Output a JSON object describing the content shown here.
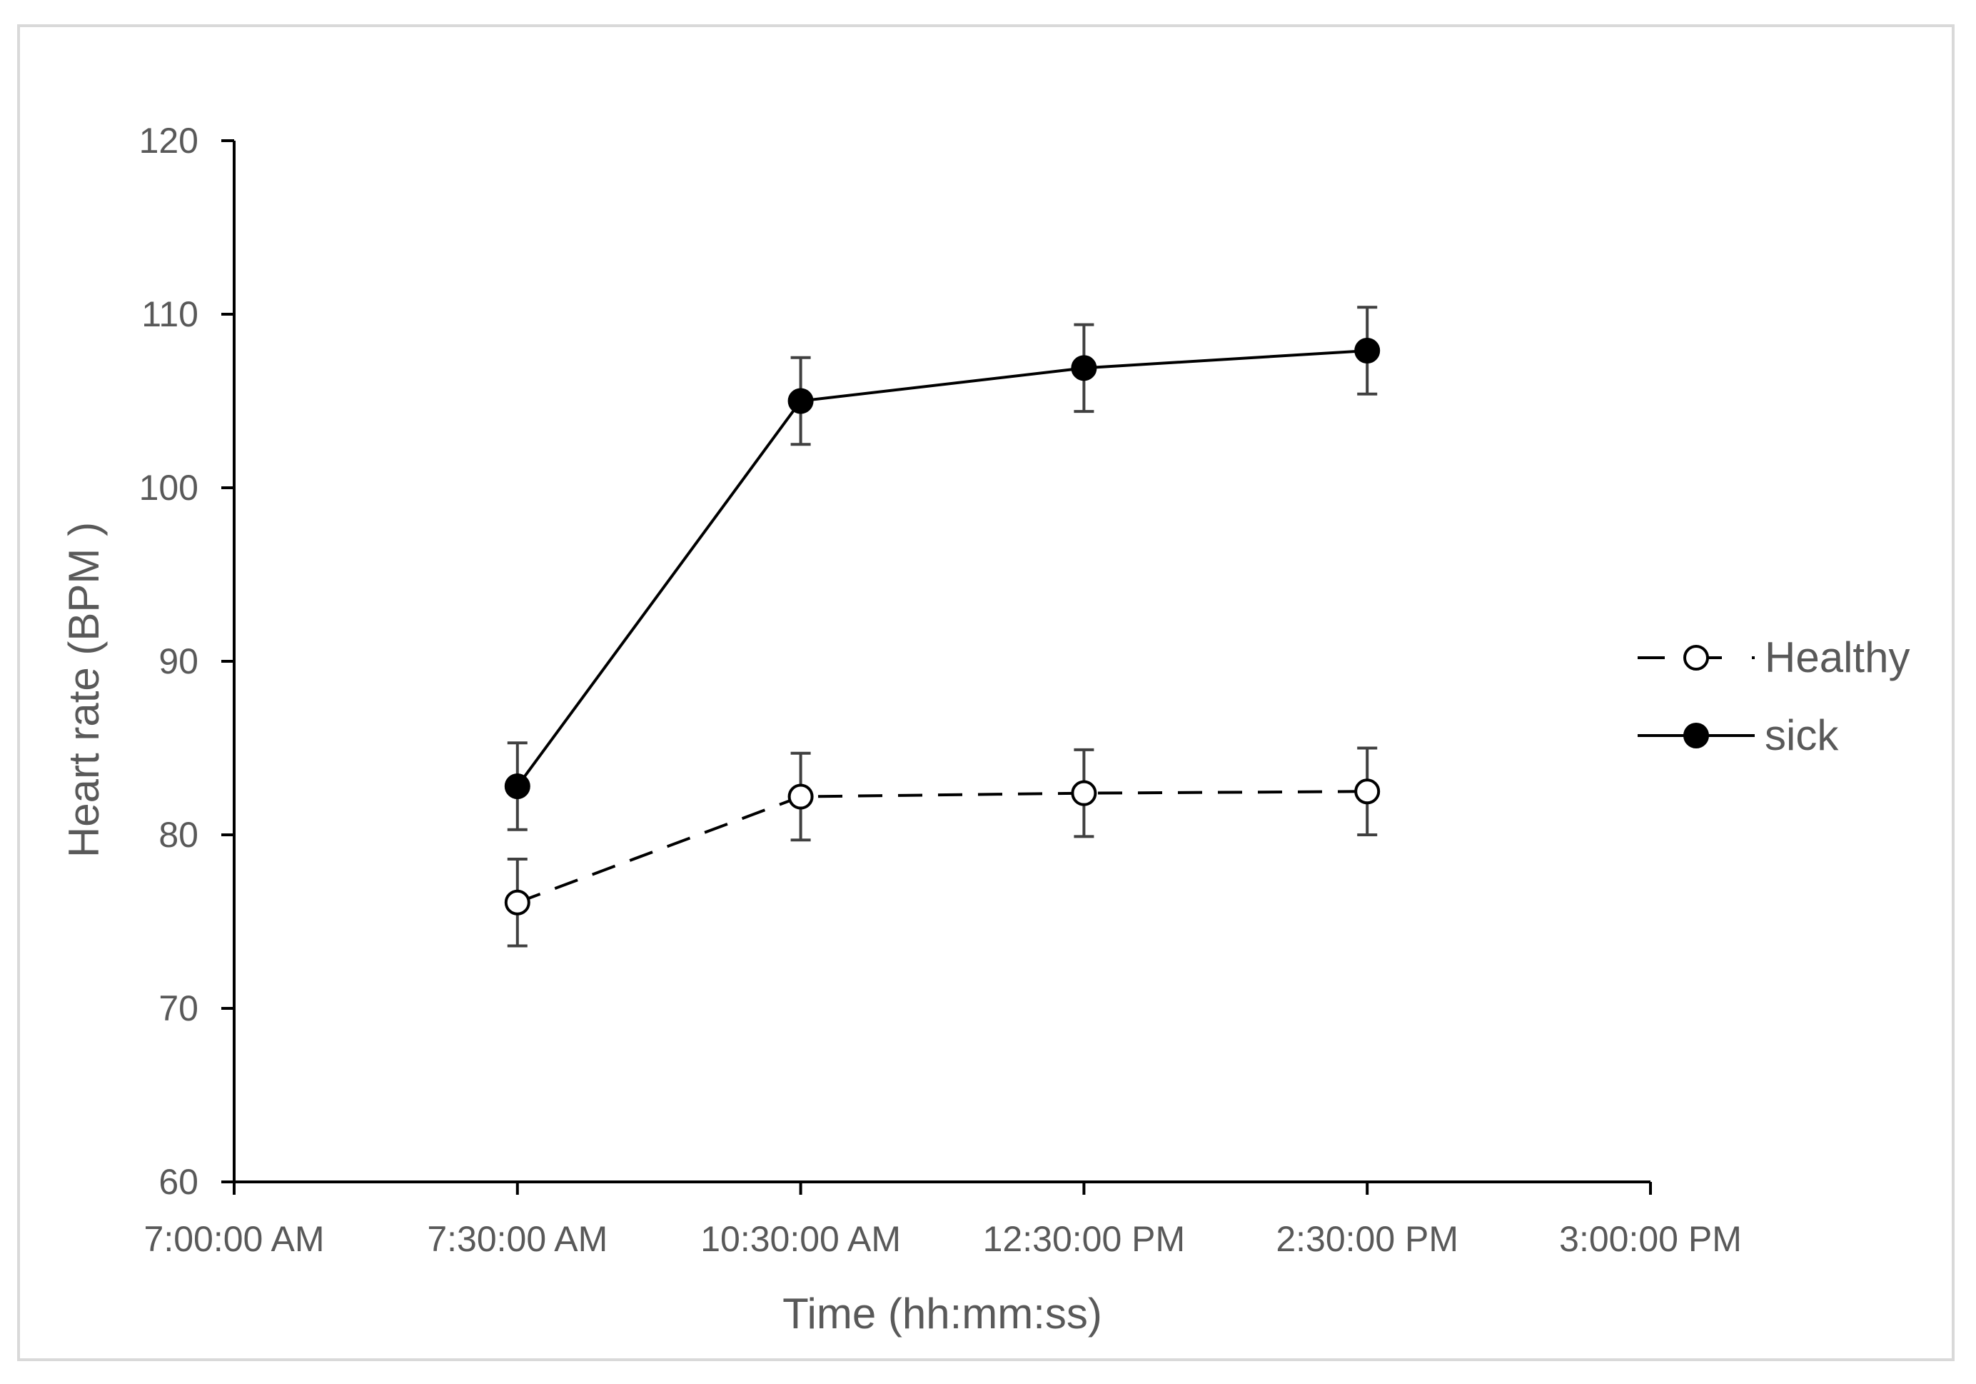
{
  "chart_data": {
    "type": "line",
    "title": "",
    "xlabel": "Time (hh:mm:ss)",
    "ylabel": "Heart rate (BPM )",
    "ylim": [
      60,
      120
    ],
    "yticks": [
      60,
      70,
      80,
      90,
      100,
      110,
      120
    ],
    "categories": [
      "7:00:00 AM",
      "7:30:00 AM",
      "10:30:00 AM",
      "12:30:00 PM",
      "2:30:00 PM",
      "3:00:00 PM"
    ],
    "grid": false,
    "legend_position": "right",
    "series": [
      {
        "name": "Healthy",
        "line_style": "dashed",
        "marker": "open-circle",
        "color": "#000000",
        "x": [
          "7:30:00 AM",
          "10:30:00 AM",
          "12:30:00 PM",
          "2:30:00 PM"
        ],
        "values": [
          76.1,
          82.2,
          82.4,
          82.5
        ],
        "error": [
          2.5,
          2.5,
          2.5,
          2.5
        ]
      },
      {
        "name": "sick",
        "line_style": "solid",
        "marker": "filled-circle",
        "color": "#000000",
        "x": [
          "7:30:00 AM",
          "10:30:00 AM",
          "12:30:00 PM",
          "2:30:00 PM"
        ],
        "values": [
          82.8,
          105.0,
          106.9,
          107.9
        ],
        "error": [
          2.5,
          2.5,
          2.5,
          2.5
        ]
      }
    ]
  },
  "colors": {
    "axis": "#000000",
    "text": "#595959",
    "error_bar": "#404040",
    "frame_border": "#d9d9d9"
  }
}
